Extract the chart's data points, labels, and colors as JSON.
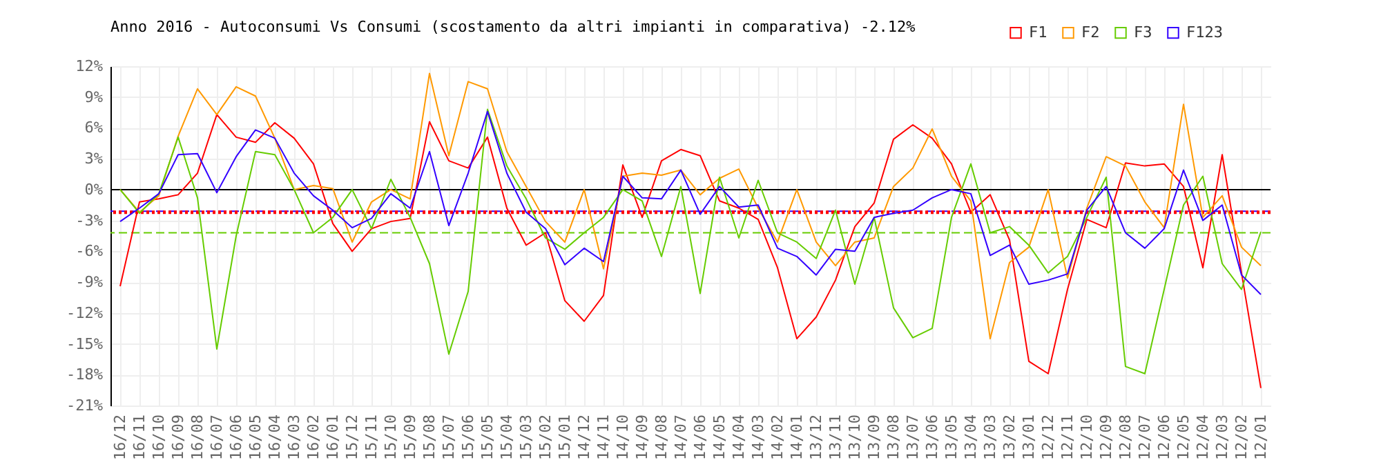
{
  "chart_data": {
    "type": "line",
    "title": "Anno 2016 - Autoconsumi Vs Consumi (scostamento da altri impianti in comparativa) -2.12%",
    "categories": [
      "16/12",
      "16/11",
      "16/10",
      "16/09",
      "16/08",
      "16/07",
      "16/06",
      "16/05",
      "16/04",
      "16/03",
      "16/02",
      "16/01",
      "15/12",
      "15/11",
      "15/10",
      "15/09",
      "15/08",
      "15/07",
      "15/06",
      "15/05",
      "15/04",
      "15/03",
      "15/02",
      "15/01",
      "14/12",
      "14/11",
      "14/10",
      "14/09",
      "14/08",
      "14/07",
      "14/06",
      "14/05",
      "14/04",
      "14/03",
      "14/02",
      "14/01",
      "13/12",
      "13/11",
      "13/10",
      "13/09",
      "13/08",
      "13/07",
      "13/06",
      "13/05",
      "13/04",
      "13/03",
      "13/02",
      "13/01",
      "12/12",
      "12/11",
      "12/10",
      "12/09",
      "12/08",
      "12/07",
      "12/06",
      "12/05",
      "12/04",
      "12/03",
      "12/02",
      "12/01"
    ],
    "series": [
      {
        "name": "F1",
        "color": "#ff0000",
        "values": [
          -9.4,
          -1.2,
          -0.9,
          -0.5,
          1.6,
          7.3,
          5.1,
          4.6,
          6.5,
          5.0,
          2.5,
          -3.3,
          -6.0,
          -3.8,
          -3.1,
          -2.8,
          6.6,
          2.8,
          2.1,
          5.1,
          -1.8,
          -5.4,
          -4.2,
          -10.8,
          -12.8,
          -10.3,
          2.4,
          -2.7,
          2.8,
          3.9,
          3.3,
          -1.1,
          -1.8,
          -2.9,
          -7.6,
          -14.5,
          -12.4,
          -8.8,
          -3.6,
          -1.3,
          4.9,
          6.3,
          5.0,
          2.5,
          -2.2,
          -0.5,
          -4.9,
          -16.7,
          -17.9,
          -9.7,
          -2.9,
          -3.7,
          2.6,
          2.3,
          2.5,
          0.3,
          -7.6,
          3.4,
          -8.1,
          -19.3
        ]
      },
      {
        "name": "F2",
        "color": "#ff9900",
        "values": [
          0,
          -2.2,
          -0.6,
          5.2,
          9.8,
          7.3,
          10.0,
          9.1,
          5.0,
          0,
          0.4,
          0.1,
          -5.1,
          -1.2,
          0,
          -0.9,
          11.3,
          3.3,
          10.5,
          9.8,
          3.7,
          0.3,
          -3.1,
          -5.1,
          0,
          -7.7,
          1.3,
          1.6,
          1.4,
          1.9,
          -0.5,
          1.1,
          2.0,
          -1.8,
          -5.1,
          0,
          -5.1,
          -7.4,
          -5.1,
          -4.7,
          0.3,
          2.1,
          5.9,
          1.3,
          -1.1,
          -14.5,
          -7.1,
          -5.6,
          0,
          -8.6,
          -1.8,
          3.2,
          2.3,
          -1.2,
          -3.7,
          8.3,
          -2.7,
          -0.6,
          -5.6,
          -7.4
        ]
      },
      {
        "name": "F3",
        "color": "#66cc00",
        "values": [
          0,
          -2.3,
          -0.4,
          5.1,
          -0.8,
          -15.5,
          -4.5,
          3.7,
          3.4,
          0,
          -4.2,
          -2.7,
          0,
          -3.8,
          1.0,
          -2.7,
          -7.2,
          -16.0,
          -9.9,
          7.8,
          2.3,
          -0.9,
          -4.7,
          -5.8,
          -4.2,
          -2.7,
          0,
          -1.1,
          -6.5,
          0.3,
          -10.1,
          1.2,
          -4.7,
          0.9,
          -4.2,
          -5.1,
          -6.7,
          -2.0,
          -9.2,
          -2.7,
          -11.5,
          -14.4,
          -13.5,
          -2.7,
          2.5,
          -4.2,
          -3.6,
          -5.4,
          -8.1,
          -6.5,
          -2.7,
          1.2,
          -17.2,
          -17.9,
          -9.7,
          -1.5,
          1.3,
          -7.2,
          -9.7,
          -4.1
        ]
      },
      {
        "name": "F123",
        "color": "#3300ff",
        "values": [
          -3.1,
          -1.8,
          -0.4,
          3.4,
          3.5,
          -0.3,
          3.2,
          5.8,
          5.0,
          1.6,
          -0.6,
          -2.0,
          -3.7,
          -2.8,
          -0.4,
          -1.8,
          3.7,
          -3.5,
          1.6,
          7.6,
          1.6,
          -2.2,
          -3.8,
          -7.3,
          -5.7,
          -7.0,
          1.3,
          -0.8,
          -0.9,
          1.9,
          -2.4,
          0.3,
          -1.7,
          -1.5,
          -5.7,
          -6.5,
          -8.3,
          -5.8,
          -6.0,
          -2.7,
          -2.3,
          -2.0,
          -0.8,
          0,
          -0.4,
          -6.4,
          -5.4,
          -9.2,
          -8.8,
          -8.2,
          -2.0,
          0.3,
          -4.2,
          -5.7,
          -3.8,
          1.9,
          -3.0,
          -1.5,
          -8.3,
          -10.2
        ]
      }
    ],
    "ylim": [
      -21,
      12
    ],
    "yticks": [
      {
        "value": -21,
        "label": "-21%"
      },
      {
        "value": -18,
        "label": "-18%"
      },
      {
        "value": -15,
        "label": "-15%"
      },
      {
        "value": -12,
        "label": "-12%"
      },
      {
        "value": -9,
        "label": "-9%"
      },
      {
        "value": -6,
        "label": "-6%"
      },
      {
        "value": -3,
        "label": "-3%"
      },
      {
        "value": 0,
        "label": "0%"
      },
      {
        "value": 3,
        "label": "3%"
      },
      {
        "value": 6,
        "label": "6%"
      },
      {
        "value": 9,
        "label": "9%"
      },
      {
        "value": 12,
        "label": "12%"
      }
    ],
    "ref_lines": [
      {
        "axis": "y",
        "value": 0,
        "color": "#000000",
        "line_style": "solid"
      },
      {
        "axis": "y",
        "value": -4.2,
        "color": "#66cc00",
        "line_style": "dashed"
      },
      {
        "axis": "y",
        "value": -2.1,
        "color": "#3300ff",
        "line_style": "dashed"
      },
      {
        "axis": "y",
        "value": -2.2,
        "color": "#ff0000",
        "line_style": "dotted"
      }
    ],
    "grid": true,
    "legend": "top right",
    "marker": "none",
    "line_style": "solid"
  }
}
